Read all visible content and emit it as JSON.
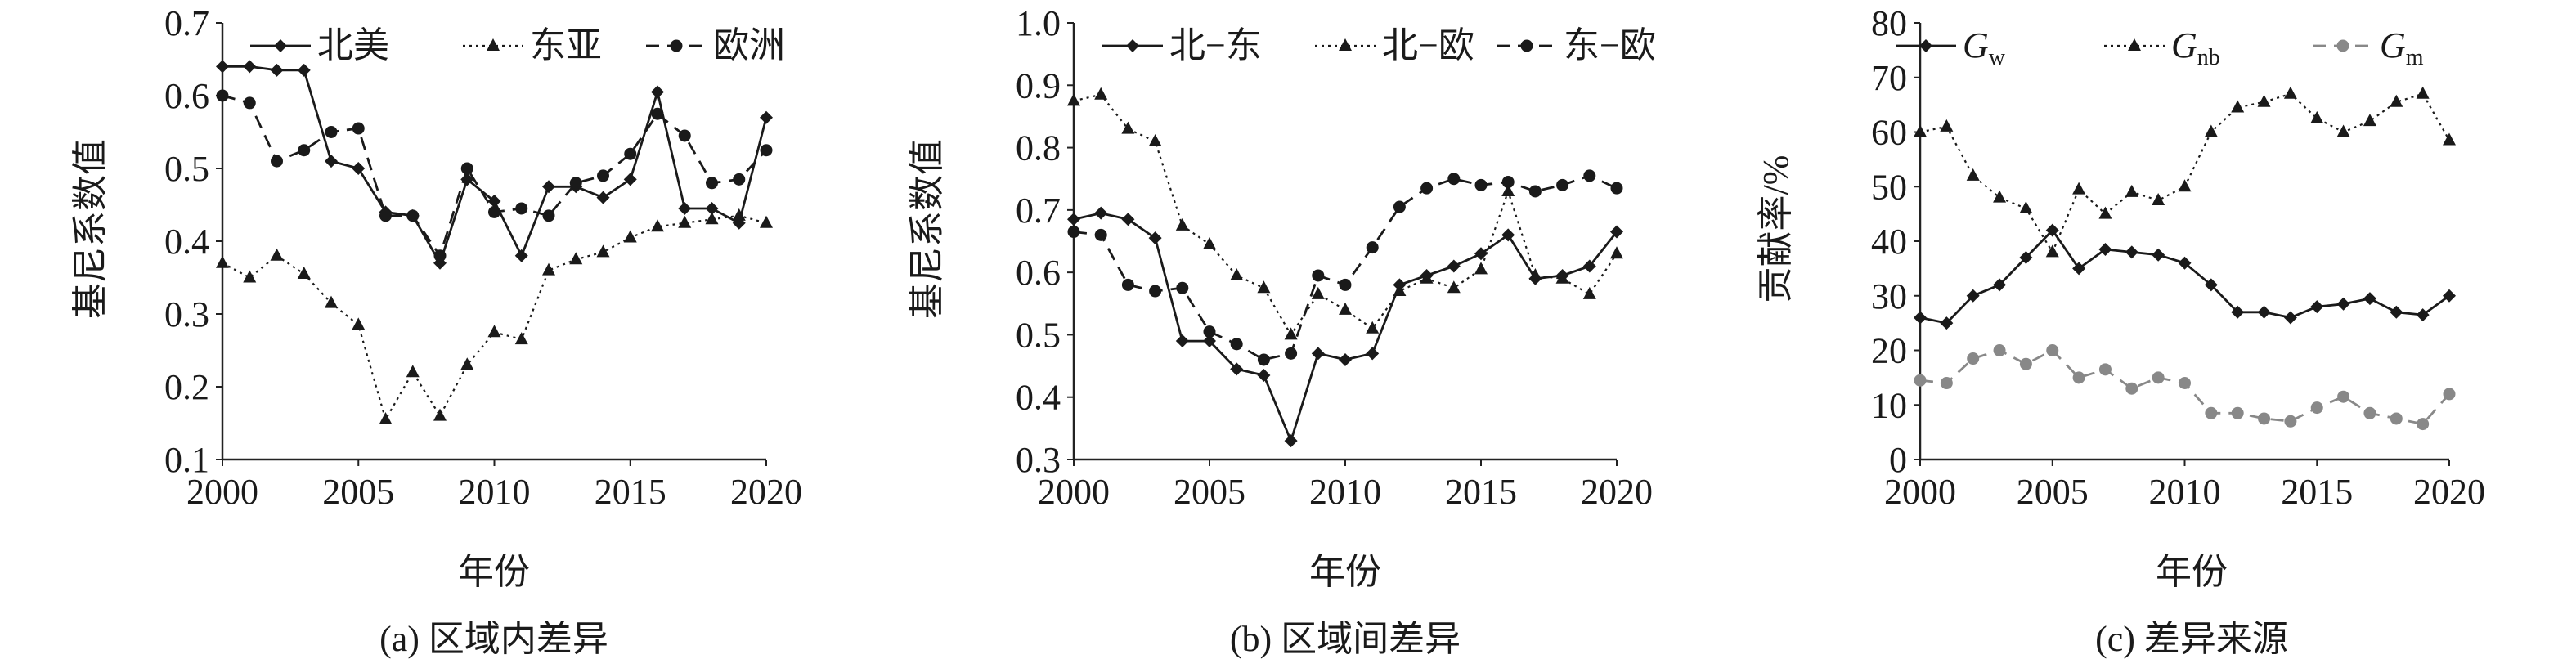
{
  "chart_data": [
    {
      "type": "line",
      "caption": "(a) 区域内差异",
      "xlabel": "年份",
      "ylabel": "基尼系数值",
      "xlim": [
        2000,
        2020
      ],
      "ylim": [
        0.1,
        0.7
      ],
      "xticks": [
        2000,
        2005,
        2010,
        2015,
        2020
      ],
      "yticks": [
        "0.1",
        "0.2",
        "0.3",
        "0.4",
        "0.5",
        "0.6",
        "0.7"
      ],
      "legend_position": "top",
      "x": [
        2000,
        2001,
        2002,
        2003,
        2004,
        2005,
        2006,
        2007,
        2008,
        2009,
        2010,
        2011,
        2012,
        2013,
        2014,
        2015,
        2016,
        2017,
        2018,
        2019,
        2020
      ],
      "series": [
        {
          "name": "北美",
          "style": "solid",
          "marker": "diamond",
          "values": [
            0.64,
            0.64,
            0.635,
            0.635,
            0.51,
            0.5,
            0.44,
            0.435,
            0.37,
            0.485,
            0.455,
            0.38,
            0.475,
            0.475,
            0.46,
            0.485,
            0.605,
            0.445,
            0.445,
            0.425,
            0.57
          ]
        },
        {
          "name": "东亚",
          "style": "dotted",
          "marker": "triangle",
          "values": [
            0.37,
            0.35,
            0.38,
            0.355,
            0.315,
            0.285,
            0.155,
            0.22,
            0.16,
            0.23,
            0.275,
            0.265,
            0.36,
            0.375,
            0.385,
            0.405,
            0.42,
            0.425,
            0.43,
            0.435,
            0.425
          ]
        },
        {
          "name": "欧洲",
          "style": "dashed",
          "marker": "circle",
          "values": [
            0.6,
            0.59,
            0.51,
            0.525,
            0.55,
            0.555,
            0.435,
            0.435,
            0.38,
            0.5,
            0.44,
            0.445,
            0.435,
            0.48,
            0.49,
            0.52,
            0.575,
            0.545,
            0.48,
            0.485,
            0.525
          ]
        }
      ]
    },
    {
      "type": "line",
      "caption": "(b) 区域间差异",
      "xlabel": "年份",
      "ylabel": "基尼系数值",
      "xlim": [
        2000,
        2020
      ],
      "ylim": [
        0.3,
        1.0
      ],
      "xticks": [
        2000,
        2005,
        2010,
        2015,
        2020
      ],
      "yticks": [
        "0.3",
        "0.4",
        "0.5",
        "0.6",
        "0.7",
        "0.8",
        "0.9",
        "1.0"
      ],
      "legend_position": "top",
      "x": [
        2000,
        2001,
        2002,
        2003,
        2004,
        2005,
        2006,
        2007,
        2008,
        2009,
        2010,
        2011,
        2012,
        2013,
        2014,
        2015,
        2016,
        2017,
        2018,
        2019,
        2020
      ],
      "series": [
        {
          "name": "北−东",
          "style": "solid",
          "marker": "diamond",
          "values": [
            0.685,
            0.695,
            0.685,
            0.655,
            0.49,
            0.49,
            0.445,
            0.435,
            0.33,
            0.47,
            0.46,
            0.47,
            0.58,
            0.595,
            0.61,
            0.63,
            0.66,
            0.59,
            0.595,
            0.61,
            0.665
          ]
        },
        {
          "name": "北−欧",
          "style": "dotted",
          "marker": "triangle",
          "values": [
            0.875,
            0.885,
            0.83,
            0.81,
            0.675,
            0.645,
            0.595,
            0.575,
            0.5,
            0.565,
            0.54,
            0.51,
            0.57,
            0.59,
            0.575,
            0.605,
            0.73,
            0.595,
            0.59,
            0.565,
            0.63
          ]
        },
        {
          "name": "东−欧",
          "style": "dashed",
          "marker": "circle",
          "values": [
            0.665,
            0.66,
            0.58,
            0.57,
            0.575,
            0.505,
            0.485,
            0.46,
            0.47,
            0.595,
            0.58,
            0.64,
            0.705,
            0.735,
            0.75,
            0.74,
            0.745,
            0.73,
            0.74,
            0.755,
            0.735
          ]
        }
      ]
    },
    {
      "type": "line",
      "caption": "(c) 差异来源",
      "xlabel": "年份",
      "ylabel": "贡献率/%",
      "xlim": [
        2000,
        2020
      ],
      "ylim": [
        0,
        80
      ],
      "xticks": [
        2000,
        2005,
        2010,
        2015,
        2020
      ],
      "yticks": [
        "0",
        "10",
        "20",
        "30",
        "40",
        "50",
        "60",
        "70",
        "80"
      ],
      "legend_position": "top",
      "x": [
        2000,
        2001,
        2002,
        2003,
        2004,
        2005,
        2006,
        2007,
        2008,
        2009,
        2010,
        2011,
        2012,
        2013,
        2014,
        2015,
        2016,
        2017,
        2018,
        2019,
        2020
      ],
      "series": [
        {
          "name": "G",
          "subscript": "w",
          "style": "solid",
          "marker": "diamond",
          "values": [
            26,
            25,
            30,
            32,
            37,
            42,
            35,
            38.5,
            38,
            37.5,
            36,
            32,
            27,
            27,
            26,
            28,
            28.5,
            29.5,
            27,
            26.5,
            30
          ]
        },
        {
          "name": "G",
          "subscript": "nb",
          "style": "dotted",
          "marker": "triangle",
          "values": [
            60,
            61,
            52,
            48,
            46,
            38,
            49.5,
            45,
            49,
            47.5,
            50,
            60,
            64.5,
            65.5,
            67,
            62.5,
            60,
            62,
            65.5,
            67,
            58.5
          ]
        },
        {
          "name": "G",
          "subscript": "m",
          "style": "dashed",
          "marker": "circle",
          "color": "#888888",
          "values": [
            14.5,
            14,
            18.5,
            20,
            17.5,
            20,
            15,
            16.5,
            13,
            15,
            14,
            8.5,
            8.5,
            7.5,
            7,
            9.5,
            11.5,
            8.5,
            7.5,
            6.5,
            12
          ]
        }
      ]
    }
  ]
}
